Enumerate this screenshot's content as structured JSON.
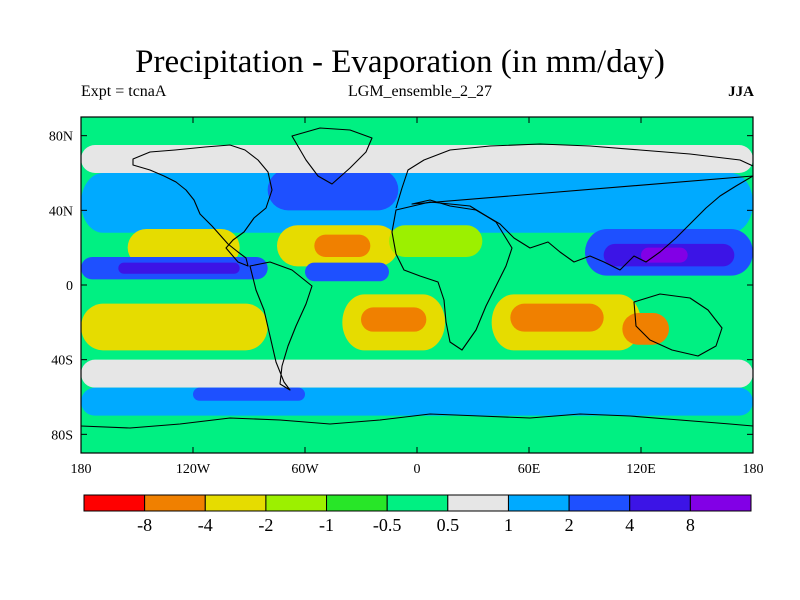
{
  "chart_data": {
    "type": "heatmap",
    "title": "Precipitation - Evaporation (in mm/day)",
    "experiment_label": "Expt = tcnaA",
    "run_label": "LGM_ensemble_2_27",
    "season_label": "JJA",
    "x_range": [
      -180,
      180
    ],
    "y_range": [
      -90,
      90
    ],
    "x_ticks": [
      {
        "value": -180,
        "label": "180"
      },
      {
        "value": -120,
        "label": "120W"
      },
      {
        "value": -60,
        "label": "60W"
      },
      {
        "value": 0,
        "label": "0"
      },
      {
        "value": 60,
        "label": "60E"
      },
      {
        "value": 120,
        "label": "120E"
      },
      {
        "value": 180,
        "label": "180"
      }
    ],
    "y_ticks": [
      {
        "value": 80,
        "label": "80N"
      },
      {
        "value": 40,
        "label": "40N"
      },
      {
        "value": 0,
        "label": "0"
      },
      {
        "value": -40,
        "label": "40S"
      },
      {
        "value": -80,
        "label": "80S"
      }
    ],
    "color_bins": [
      {
        "color": "#ff0000"
      },
      {
        "color": "#f08000"
      },
      {
        "color": "#e6dc00"
      },
      {
        "color": "#9cf000"
      },
      {
        "color": "#28e628"
      },
      {
        "color": "#00f082"
      },
      {
        "color": "#e6e6e6"
      },
      {
        "color": "#00aaff"
      },
      {
        "color": "#1e50ff"
      },
      {
        "color": "#3c14e6"
      },
      {
        "color": "#8200e6"
      }
    ],
    "colorbar_labels": [
      "-8",
      "-4",
      "-2",
      "-1",
      "-0.5",
      "0.5",
      "1",
      "2",
      "4",
      "8"
    ],
    "regions": [
      {
        "name": "northern-storm-track-band",
        "lon": [
          -180,
          180
        ],
        "lat": [
          28,
          60
        ],
        "bin": 7
      },
      {
        "name": "north-atlantic-storm-track",
        "lon": [
          -80,
          -10
        ],
        "lat": [
          40,
          62
        ],
        "bin": 8
      },
      {
        "name": "arctic-grey-band",
        "lon": [
          -180,
          180
        ],
        "lat": [
          60,
          75
        ],
        "bin": 6
      },
      {
        "name": "north-pacific-dry",
        "lon": [
          -155,
          -95
        ],
        "lat": [
          10,
          30
        ],
        "bin": 2
      },
      {
        "name": "north-atlantic-dry",
        "lon": [
          -75,
          -10
        ],
        "lat": [
          10,
          32
        ],
        "bin": 2
      },
      {
        "name": "north-atlantic-dry-core",
        "lon": [
          -55,
          -25
        ],
        "lat": [
          15,
          27
        ],
        "bin": 1
      },
      {
        "name": "sahara-dry",
        "lon": [
          -15,
          35
        ],
        "lat": [
          15,
          32
        ],
        "bin": 3
      },
      {
        "name": "east-pacific-itcz",
        "lon": [
          -180,
          -80
        ],
        "lat": [
          3,
          15
        ],
        "bin": 8
      },
      {
        "name": "east-pacific-itcz-core",
        "lon": [
          -160,
          -95
        ],
        "lat": [
          6,
          12
        ],
        "bin": 9
      },
      {
        "name": "atlantic-itcz",
        "lon": [
          -60,
          -15
        ],
        "lat": [
          2,
          12
        ],
        "bin": 8
      },
      {
        "name": "asian-monsoon",
        "lon": [
          90,
          180
        ],
        "lat": [
          5,
          30
        ],
        "bin": 8
      },
      {
        "name": "asian-monsoon-core",
        "lon": [
          100,
          170
        ],
        "lat": [
          10,
          22
        ],
        "bin": 9
      },
      {
        "name": "warm-pool-max",
        "lon": [
          120,
          145
        ],
        "lat": [
          12,
          20
        ],
        "bin": 10
      },
      {
        "name": "south-pacific-dry",
        "lon": [
          -180,
          -80
        ],
        "lat": [
          -35,
          -10
        ],
        "bin": 2
      },
      {
        "name": "south-atlantic-dry",
        "lon": [
          -40,
          15
        ],
        "lat": [
          -35,
          -5
        ],
        "bin": 2
      },
      {
        "name": "south-atlantic-dry-core",
        "lon": [
          -30,
          5
        ],
        "lat": [
          -25,
          -12
        ],
        "bin": 1
      },
      {
        "name": "indian-ocean-dry",
        "lon": [
          40,
          120
        ],
        "lat": [
          -35,
          -5
        ],
        "bin": 2
      },
      {
        "name": "indian-ocean-dry-core",
        "lon": [
          50,
          100
        ],
        "lat": [
          -25,
          -10
        ],
        "bin": 1
      },
      {
        "name": "australia-west-dry",
        "lon": [
          110,
          135
        ],
        "lat": [
          -32,
          -15
        ],
        "bin": 1
      },
      {
        "name": "southern-ocean-grey",
        "lon": [
          -180,
          180
        ],
        "lat": [
          -55,
          -40
        ],
        "bin": 6
      },
      {
        "name": "southern-ocean-wet",
        "lon": [
          -180,
          180
        ],
        "lat": [
          -70,
          -55
        ],
        "bin": 7
      },
      {
        "name": "south-pacific-wet-core",
        "lon": [
          -120,
          -60
        ],
        "lat": [
          -62,
          -55
        ],
        "bin": 8
      }
    ]
  }
}
